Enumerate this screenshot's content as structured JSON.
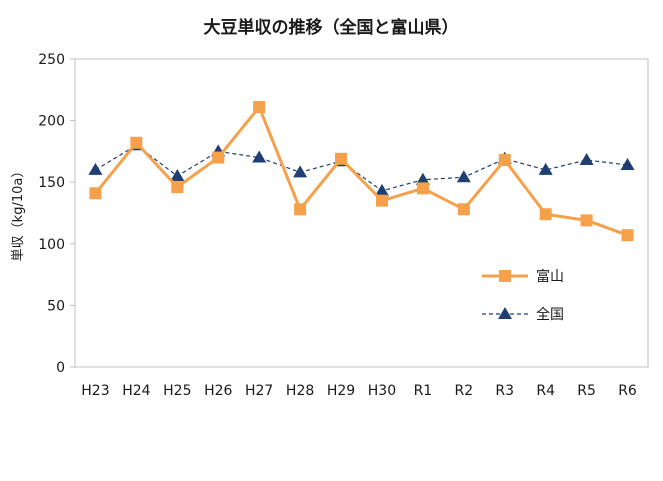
{
  "chart_data": {
    "type": "line",
    "title": "大豆単収の推移（全国と富山県）",
    "xlabel": "",
    "ylabel": "単収（kg/10a）",
    "ylim": [
      0,
      250
    ],
    "yticks": [
      0,
      50,
      100,
      150,
      200,
      250
    ],
    "categories": [
      "H23",
      "H24",
      "H25",
      "H26",
      "H27",
      "H28",
      "H29",
      "H30",
      "R1",
      "R2",
      "R3",
      "R4",
      "R5",
      "R6"
    ],
    "grid": false,
    "legend_position": "right",
    "series": [
      {
        "name": "富山",
        "color": "#f5a04a",
        "marker": "square",
        "line": "solid",
        "values": [
          141,
          182,
          146,
          170,
          211,
          128,
          169,
          135,
          145,
          128,
          168,
          124,
          119,
          107
        ]
      },
      {
        "name": "全国",
        "color": "#1f3f73",
        "marker": "triangle",
        "line": "dashed",
        "values": [
          160,
          180,
          155,
          175,
          170,
          158,
          167,
          143,
          152,
          154,
          169,
          160,
          168,
          164
        ]
      }
    ]
  }
}
